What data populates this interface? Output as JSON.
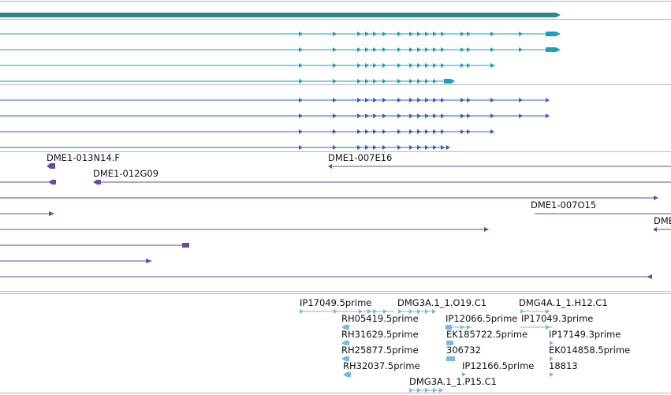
{
  "colors": {
    "gene_track": "#2b8a87",
    "transcript_cyan": "#1a9fc2",
    "transcript_blue": "#2f62c8",
    "bac_clone": "#6a4aa5",
    "est_light": "#7ab8e0",
    "divider": "#b7b7b7"
  },
  "bac_clones": {
    "labels": [
      "DME1-013N14.F",
      "DME1-012G09",
      "DME1-007E16",
      "DME1-007O15",
      "DME"
    ]
  },
  "ests": {
    "labels": [
      "IP17049.5prime",
      "DMG3A.1_1.O19.C1",
      "DMG4A.1_1.H12.C1",
      "RH05419.5prime",
      "IP12066.5prime",
      "IP17049.3prime",
      "RH31629.5prime",
      "EK185722.5prime",
      "IP17149.3prime",
      "306732",
      "RH25877.5prime",
      "EK014858.5prime",
      "RH32037.5prime",
      "IP12166.5prime",
      "18813",
      "DMG3A.1_1.P15.C1"
    ]
  }
}
